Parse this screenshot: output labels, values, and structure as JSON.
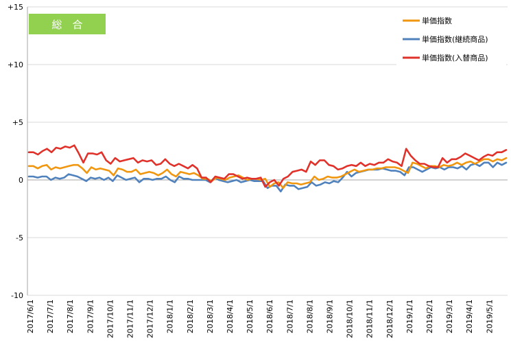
{
  "chart_data": {
    "type": "line",
    "title_badge": "総　合",
    "ylim": [
      -10,
      15
    ],
    "y_ticks": [
      "+15",
      "+10",
      "+5",
      "0",
      "-5",
      "-10"
    ],
    "x_ticks": [
      "2017/6/1",
      "2017/7/1",
      "2017/8/1",
      "2017/9/1",
      "2017/10/1",
      "2017/11/1",
      "2017/12/1",
      "2018/1/1",
      "2018/2/1",
      "2018/3/1",
      "2018/4/1",
      "2018/5/1",
      "2018/6/1",
      "2018/7/1",
      "2018/8/1",
      "2018/9/1",
      "2018/10/1",
      "2018/11/1",
      "2018/12/1",
      "2019/1/1",
      "2019/2/1",
      "2019/3/1",
      "2019/4/1",
      "2019/5/1"
    ],
    "grid": "horizontal",
    "legend_position": "top-right",
    "series": [
      {
        "name": "単価指数",
        "color": "#f0960f",
        "values": [
          1.2,
          1.2,
          1.0,
          1.2,
          1.3,
          0.9,
          1.1,
          1.0,
          1.1,
          1.2,
          1.3,
          1.3,
          1.0,
          0.6,
          1.1,
          0.9,
          1.0,
          0.9,
          0.8,
          0.4,
          1.0,
          0.9,
          0.7,
          0.7,
          0.9,
          0.5,
          0.6,
          0.7,
          0.6,
          0.4,
          0.6,
          0.9,
          0.5,
          0.3,
          0.7,
          0.6,
          0.5,
          0.6,
          0.4,
          0.1,
          0.1,
          -0.1,
          0.2,
          0.1,
          0.0,
          0.2,
          0.3,
          0.4,
          0.2,
          0.0,
          0.1,
          0.1,
          0.0,
          0.1,
          -0.6,
          -0.3,
          -0.2,
          -0.7,
          -0.2,
          -0.3,
          -0.3,
          -0.4,
          -0.3,
          -0.2,
          0.3,
          0.0,
          0.1,
          0.3,
          0.2,
          0.2,
          0.3,
          0.5,
          0.7,
          0.9,
          0.7,
          0.8,
          0.9,
          0.9,
          1.0,
          1.0,
          1.1,
          1.1,
          1.1,
          1.0,
          0.8,
          0.6,
          1.5,
          1.4,
          1.2,
          1.0,
          1.2,
          1.2,
          1.1,
          1.3,
          1.2,
          1.3,
          1.5,
          1.3,
          1.5,
          1.6,
          1.4,
          1.6,
          1.8,
          1.8,
          1.6,
          1.8,
          1.7,
          1.9
        ]
      },
      {
        "name": "単価指数(継続商品)",
        "color": "#4f81bd",
        "values": [
          0.3,
          0.3,
          0.2,
          0.3,
          0.3,
          0.0,
          0.2,
          0.1,
          0.2,
          0.5,
          0.4,
          0.3,
          0.1,
          -0.1,
          0.2,
          0.1,
          0.2,
          0.0,
          0.2,
          -0.1,
          0.4,
          0.2,
          0.0,
          0.1,
          0.2,
          -0.2,
          0.1,
          0.1,
          0.0,
          0.1,
          0.1,
          0.3,
          0.0,
          -0.2,
          0.3,
          0.1,
          0.1,
          0.0,
          0.0,
          0.0,
          0.0,
          -0.2,
          0.2,
          0.0,
          -0.1,
          -0.2,
          -0.1,
          0.0,
          -0.2,
          -0.1,
          0.0,
          -0.1,
          -0.1,
          -0.1,
          -0.7,
          -0.5,
          -0.5,
          -1.0,
          -0.4,
          -0.5,
          -0.5,
          -0.8,
          -0.7,
          -0.6,
          -0.2,
          -0.5,
          -0.4,
          -0.2,
          -0.3,
          -0.1,
          -0.2,
          0.2,
          0.7,
          0.3,
          0.6,
          0.7,
          0.8,
          0.9,
          0.9,
          0.9,
          1.0,
          0.9,
          0.8,
          0.8,
          0.7,
          0.4,
          1.1,
          1.1,
          0.9,
          0.7,
          0.9,
          1.1,
          1.0,
          1.1,
          0.9,
          1.1,
          1.1,
          1.0,
          1.2,
          0.9,
          1.3,
          1.4,
          1.2,
          1.5,
          1.5,
          1.1,
          1.5,
          1.3,
          1.5
        ]
      },
      {
        "name": "単価指数(入替商品)",
        "color": "#e0312a",
        "values": [
          2.4,
          2.4,
          2.2,
          2.5,
          2.7,
          2.4,
          2.8,
          2.7,
          2.9,
          2.8,
          3.0,
          2.3,
          1.5,
          2.3,
          2.3,
          2.2,
          2.4,
          1.7,
          1.4,
          1.9,
          1.6,
          1.7,
          1.8,
          1.9,
          1.5,
          1.7,
          1.6,
          1.7,
          1.3,
          1.4,
          1.8,
          1.4,
          1.2,
          1.4,
          1.2,
          1.0,
          1.3,
          1.0,
          0.2,
          0.2,
          -0.2,
          0.3,
          0.2,
          0.1,
          0.5,
          0.5,
          0.3,
          0.1,
          0.2,
          0.1,
          0.1,
          0.2,
          -0.6,
          -0.2,
          0.0,
          -0.5,
          0.1,
          0.3,
          0.7,
          0.8,
          0.9,
          0.7,
          1.6,
          1.3,
          1.7,
          1.7,
          1.3,
          1.2,
          0.9,
          1.0,
          1.2,
          1.3,
          1.2,
          1.5,
          1.2,
          1.4,
          1.3,
          1.5,
          1.5,
          1.8,
          1.6,
          1.5,
          1.2,
          2.7,
          2.1,
          1.7,
          1.4,
          1.4,
          1.2,
          1.1,
          1.1,
          1.9,
          1.5,
          1.8,
          1.8,
          2.0,
          2.3,
          2.1,
          1.9,
          1.7,
          2.0,
          2.2,
          2.1,
          2.4,
          2.4,
          2.6
        ]
      }
    ]
  }
}
